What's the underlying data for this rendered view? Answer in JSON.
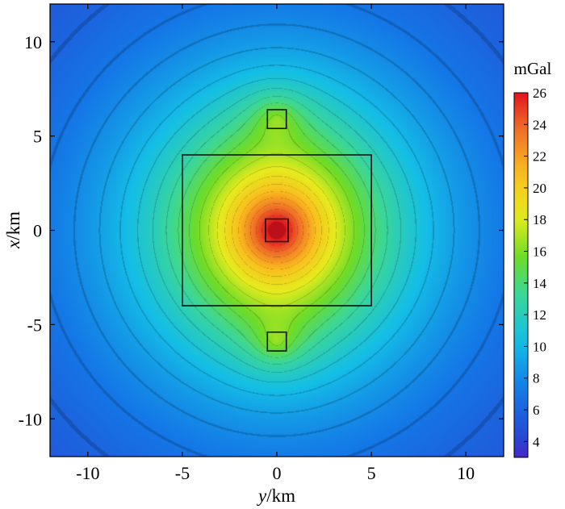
{
  "chart_data": {
    "type": "heatmap",
    "title": "",
    "xlabel_var": "y",
    "xlabel_unit": "/km",
    "ylabel_var": "x",
    "ylabel_unit": "/km",
    "xlim": [
      -12,
      12
    ],
    "ylim": [
      -12,
      12
    ],
    "xticks": [
      -10,
      -5,
      0,
      5,
      10
    ],
    "yticks": [
      -10,
      -5,
      0,
      5,
      10
    ],
    "xtick_labels": [
      "-10",
      "-5",
      "0",
      "5",
      "10"
    ],
    "ytick_labels": [
      "10",
      "5",
      "0",
      "-5",
      "-10"
    ],
    "colorbar": {
      "label": "mGal",
      "range": [
        3,
        26
      ],
      "ticks": [
        4,
        6,
        8,
        10,
        12,
        14,
        16,
        18,
        20,
        22,
        24,
        26
      ],
      "tick_labels": [
        "4",
        "6",
        "8",
        "10",
        "12",
        "14",
        "16",
        "18",
        "20",
        "22",
        "24",
        "26"
      ]
    },
    "grid": false,
    "field": {
      "description_values_mgal": {
        "center": 26,
        "inner_block_edge": 20,
        "outer_block_edge": 16,
        "domain_corner": 3
      },
      "contour_interval": 1
    },
    "outlines": [
      {
        "name": "central-body",
        "x_range": [
          -0.6,
          0.6
        ],
        "y_range": [
          -0.6,
          0.6
        ]
      },
      {
        "name": "north-body",
        "x_range": [
          5.4,
          6.4
        ],
        "y_range": [
          -0.5,
          0.5
        ]
      },
      {
        "name": "south-body",
        "x_range": [
          -6.4,
          -5.4
        ],
        "y_range": [
          -0.5,
          0.5
        ]
      },
      {
        "name": "large-block",
        "x_range": [
          -4,
          4
        ],
        "y_range": [
          -5,
          5
        ]
      }
    ]
  }
}
